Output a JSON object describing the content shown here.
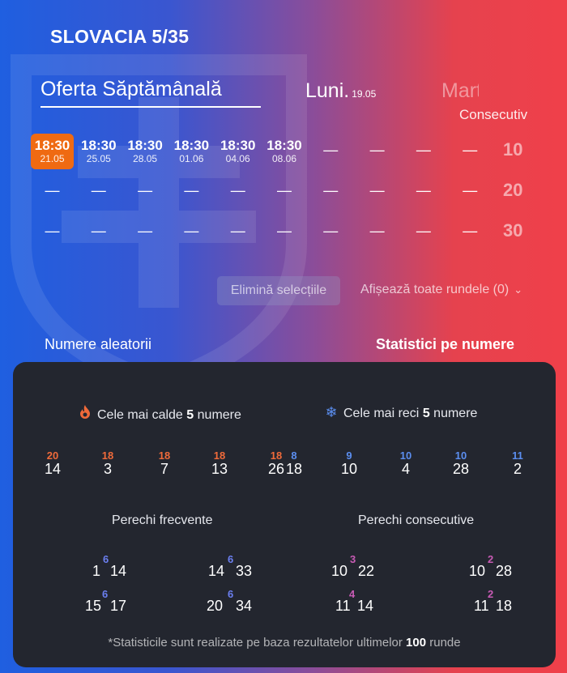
{
  "title": "SLOVACIA 5/35",
  "tabs": {
    "weekly": "Oferta Săptămânală",
    "day": "Luni.",
    "day_date": "19.05",
    "next": "Marți"
  },
  "consecutive_label": "Consecutiv",
  "draws": {
    "rows": [
      {
        "count": "10",
        "cells": [
          {
            "time": "18:30",
            "date": "21.05",
            "active": true
          },
          {
            "time": "18:30",
            "date": "25.05"
          },
          {
            "time": "18:30",
            "date": "28.05"
          },
          {
            "time": "18:30",
            "date": "01.06"
          },
          {
            "time": "18:30",
            "date": "04.06"
          },
          {
            "time": "18:30",
            "date": "08.06"
          },
          {
            "time": "—",
            "date": ""
          },
          {
            "time": "—",
            "date": ""
          },
          {
            "time": "—",
            "date": ""
          },
          {
            "time": "—",
            "date": ""
          }
        ]
      },
      {
        "count": "20",
        "cells": [
          {
            "time": "—",
            "date": ""
          },
          {
            "time": "—",
            "date": ""
          },
          {
            "time": "—",
            "date": ""
          },
          {
            "time": "—",
            "date": ""
          },
          {
            "time": "—",
            "date": ""
          },
          {
            "time": "—",
            "date": ""
          },
          {
            "time": "—",
            "date": ""
          },
          {
            "time": "—",
            "date": ""
          },
          {
            "time": "—",
            "date": ""
          },
          {
            "time": "—",
            "date": ""
          }
        ]
      },
      {
        "count": "30",
        "cells": [
          {
            "time": "—",
            "date": ""
          },
          {
            "time": "—",
            "date": ""
          },
          {
            "time": "—",
            "date": ""
          },
          {
            "time": "—",
            "date": ""
          },
          {
            "time": "—",
            "date": ""
          },
          {
            "time": "—",
            "date": ""
          },
          {
            "time": "—",
            "date": ""
          },
          {
            "time": "—",
            "date": ""
          },
          {
            "time": "—",
            "date": ""
          },
          {
            "time": "—",
            "date": ""
          }
        ]
      }
    ]
  },
  "actions": {
    "remove": "Elimină selecțiile",
    "show_all": "Afișează toate rundele (0)"
  },
  "links": {
    "random": "Numere aleatorii",
    "stats": "Statistici pe numere"
  },
  "stats": {
    "hot_title_pre": "Cele mai calde",
    "hot_count": "5",
    "hot_title_post": "numere",
    "cold_title_pre": "Cele mai reci",
    "cold_count": "5",
    "cold_title_post": "numere",
    "hot_numbers": [
      {
        "freq": "20",
        "value": "14"
      },
      {
        "freq": "18",
        "value": "3"
      },
      {
        "freq": "18",
        "value": "7"
      },
      {
        "freq": "18",
        "value": "13"
      },
      {
        "freq": "18",
        "value": "26"
      }
    ],
    "cold_numbers": [
      {
        "freq": "8",
        "value": "18"
      },
      {
        "freq": "9",
        "value": "10"
      },
      {
        "freq": "10",
        "value": "4"
      },
      {
        "freq": "10",
        "value": "28"
      },
      {
        "freq": "11",
        "value": "2"
      }
    ],
    "frequent_pairs_title": "Perechi frecvente",
    "consecutive_pairs_title": "Perechi consecutive",
    "frequent_pairs": [
      {
        "a": "1",
        "b": "14",
        "count": "6"
      },
      {
        "a": "14",
        "b": "33",
        "count": "6"
      },
      {
        "a": "15",
        "b": "17",
        "count": "6"
      },
      {
        "a": "20",
        "b": "34",
        "count": "6"
      }
    ],
    "consecutive_pairs": [
      {
        "a": "10",
        "b": "22",
        "count": "3"
      },
      {
        "a": "10",
        "b": "28",
        "count": "2"
      },
      {
        "a": "11",
        "b": "14",
        "count": "4"
      },
      {
        "a": "11",
        "b": "18",
        "count": "2"
      }
    ],
    "footnote_pre": "*Statisticile sunt realizate pe baza rezultatelor ultimelor",
    "footnote_num": "100",
    "footnote_post": "runde"
  },
  "colors": {
    "accent": "#ef6a12",
    "panel": "#23262f",
    "hot": "#ef6a3a",
    "cold": "#5b8ef0"
  }
}
